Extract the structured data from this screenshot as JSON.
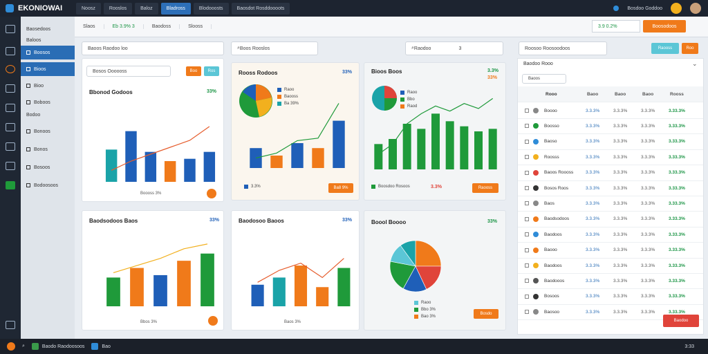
{
  "app": {
    "title": "EKONIOWAI"
  },
  "topnav": {
    "tabs": [
      "Noosz",
      "Rooslos",
      "Baloz",
      "Bladross",
      "Blodooosts",
      "Rooslos",
      "Baosdot Rosddoooots"
    ],
    "active_index": 3,
    "user_label": "Bosdoo Goddoo"
  },
  "sidebar": {
    "items": [
      "Baosedoos",
      "Baloos",
      "Boosos",
      "Bioos",
      "Bioo",
      "Boboos",
      "Bodoo",
      "Bonoos",
      "Bonos",
      "Bosoos",
      "Bodoosoos"
    ],
    "active_index": 2
  },
  "subbar": {
    "items": [
      "Slaos",
      "Eb 3.9% 3",
      "Baodoss",
      "Slooss"
    ],
    "dropdown_value": "3.9 0.2%",
    "action_button": "Boosodoos"
  },
  "cards": {
    "search_left": "Baoos Raodoo loo",
    "search_mid": "Boos Rooslos",
    "search_right": "Raodoo",
    "search_right_count": "3",
    "filter_select": "Bosos Oooooss",
    "filter_btn1": "Boo",
    "filter_btn2": "Ros",
    "card1": {
      "title": "Bbonod Godoos",
      "pct": "33%",
      "xlabel": "Boooss 3%"
    },
    "card2": {
      "title": "Rooss Rodoos",
      "pct": "33%",
      "legend": [
        "Raoo",
        "Baooss",
        "Ba 39%"
      ],
      "footer_pct": "3.3%",
      "btn": "Ba8 9%"
    },
    "card3": {
      "title": "Bioos Boos",
      "pct": "3.3%",
      "pct2": "33%",
      "legend": [
        "Raoo",
        "Bbo",
        "Raod"
      ],
      "footer1": "Boosdoo Rosoos",
      "footer2": "3.3%",
      "btn": "Raooss"
    },
    "card4": {
      "title": "Baodsodoos Baos",
      "pct": "33%",
      "xlabel": "Bbos 3%"
    },
    "card5": {
      "title": "Baodosoo Baoos",
      "pct": "33%",
      "xlabel": "Baos 3%"
    },
    "card6": {
      "title": "Boool Boooo",
      "pct": "33%",
      "legend": [
        "Raoo",
        "Bbo 3%",
        "Bao 3%"
      ],
      "btn": "Bosdo"
    }
  },
  "chart_data": [
    {
      "type": "bar",
      "title": "Bbonod Godoos",
      "values": [
        14,
        22,
        13,
        9,
        10,
        13
      ],
      "line": [
        5,
        9,
        12,
        15,
        18,
        24
      ],
      "ylim": [
        0,
        30
      ]
    },
    {
      "type": "bar",
      "title": "Rooss Rodoos",
      "values": [
        8,
        5,
        10,
        8,
        19
      ],
      "line": [
        4,
        6,
        11,
        12,
        26
      ],
      "ylim": [
        0,
        30
      ]
    },
    {
      "type": "bar",
      "title": "Bioos Boos",
      "values": [
        10,
        12,
        18,
        16,
        22,
        19,
        17,
        15,
        16
      ],
      "line": [
        6,
        10,
        18,
        22,
        25,
        23,
        26,
        24,
        28
      ],
      "ylim": [
        0,
        30
      ]
    },
    {
      "type": "bar",
      "title": "Baodsodoos Baos",
      "values": [
        12,
        16,
        13,
        19,
        22
      ],
      "line": [
        14,
        17,
        20,
        24,
        26
      ],
      "ylim": [
        0,
        30
      ]
    },
    {
      "type": "bar",
      "title": "Baodosoo Baoos",
      "values": [
        9,
        12,
        17,
        8,
        16
      ],
      "line": [
        10,
        15,
        18,
        12,
        20
      ],
      "ylim": [
        0,
        30
      ]
    },
    {
      "type": "pie",
      "title": "Boool Boooo",
      "values": [
        25,
        18,
        15,
        20,
        12,
        10
      ]
    }
  ],
  "panel": {
    "title": "Roosoo Roosoodoos",
    "filter": "Baodoo Rooo",
    "search": "Baoos",
    "headers": [
      "Rooo",
      "Baoo",
      "Baoo",
      "Baoo",
      "Rooss"
    ],
    "rows": [
      {
        "name": "Boooo",
        "c1": "3.3.3%",
        "c2": "3.3.3%",
        "c3": "3.3.3%",
        "c4": "3.33.3%"
      },
      {
        "name": "Boosso",
        "c1": "3.3.3%",
        "c2": "3.3.3%",
        "c3": "3.3.3%",
        "c4": "3.33.3%"
      },
      {
        "name": "Baoso",
        "c1": "3.3.3%",
        "c2": "3.3.3%",
        "c3": "3.3.3%",
        "c4": "3.33.3%"
      },
      {
        "name": "Roosss",
        "c1": "3.3.3%",
        "c2": "3.3.3%",
        "c3": "3.3.3%",
        "c4": "3.33.3%"
      },
      {
        "name": "Baoos Roooss",
        "c1": "3.3.3%",
        "c2": "3.3.3%",
        "c3": "3.3.3%",
        "c4": "3.33.3%"
      },
      {
        "name": "Bosos Roos",
        "c1": "3.3.3%",
        "c2": "3.3.3%",
        "c3": "3.3.3%",
        "c4": "3.33.3%"
      },
      {
        "name": "Baos",
        "c1": "3.3.3%",
        "c2": "3.3.3%",
        "c3": "3.3.3%",
        "c4": "3.33.3%"
      },
      {
        "name": "Baodsodoos",
        "c1": "3.3.3%",
        "c2": "3.3.3%",
        "c3": "3.3.3%",
        "c4": "3.33.3%"
      },
      {
        "name": "Baodoos",
        "c1": "3.3.3%",
        "c2": "3.3.3%",
        "c3": "3.3.3%",
        "c4": "3.33.3%"
      },
      {
        "name": "Baooo",
        "c1": "3.3.3%",
        "c2": "3.3.3%",
        "c3": "3.3.3%",
        "c4": "3.33.3%"
      },
      {
        "name": "Baodoos",
        "c1": "3.3.3%",
        "c2": "3.3.3%",
        "c3": "3.3.3%",
        "c4": "3.33.3%"
      },
      {
        "name": "Baodooos",
        "c1": "3.3.3%",
        "c2": "3.3.3%",
        "c3": "3.3.3%",
        "c4": "3.33.3%"
      },
      {
        "name": "Bosoos",
        "c1": "3.3.3%",
        "c2": "3.3.3%",
        "c3": "3.3.3%",
        "c4": "3.33.3%"
      },
      {
        "name": "Baosoo",
        "c1": "3.3.3%",
        "c2": "3.3.3%",
        "c3": "3.3.3%",
        "c4": "3.33.3%"
      }
    ],
    "top_btn1": "Raooss",
    "top_btn2": "Roo",
    "red_btn": "Baodoo"
  },
  "taskbar": {
    "items": [
      "Baodo Raodoosoos",
      "Bao"
    ],
    "clock": "3:33"
  },
  "colors": {
    "blue": "#1f5fb8",
    "teal": "#1aa3a8",
    "orange": "#f07a1a",
    "green": "#1f9a3a",
    "red": "#e0443a",
    "line_orange": "#e65c2c",
    "line_green": "#1f9a3a"
  }
}
